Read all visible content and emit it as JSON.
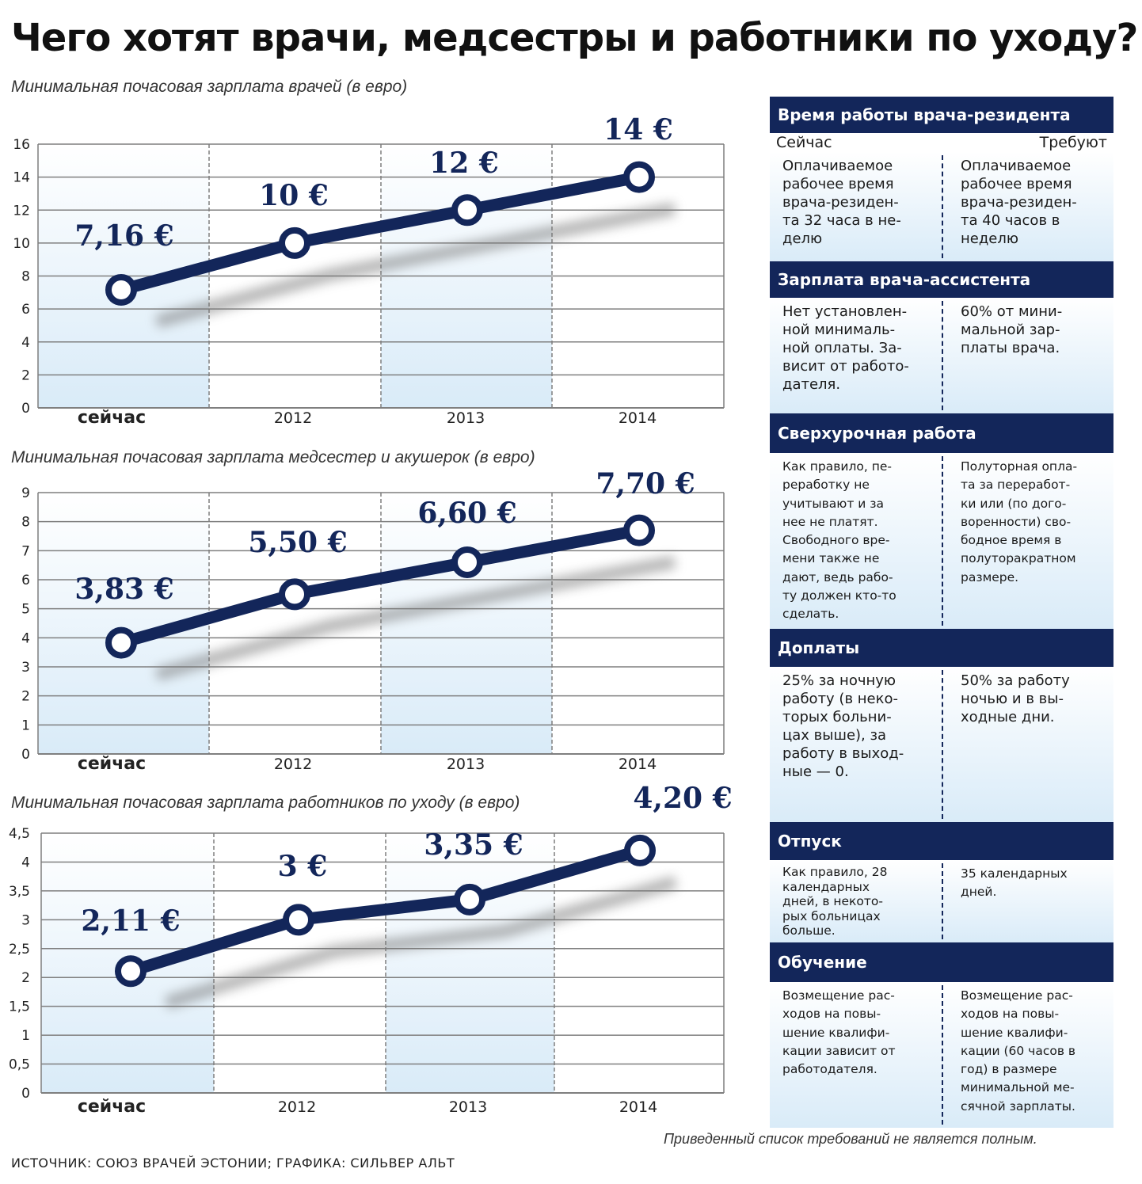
{
  "title": "Чего хотят врачи, медсестры и работники по уходу?",
  "chart_data": [
    {
      "type": "line",
      "title": "Минимальная почасовая зарплата врачей (в евро)",
      "categories": [
        "сейчас",
        "2012",
        "2013",
        "2014"
      ],
      "series": [
        {
          "values": [
            7.16,
            10,
            12,
            14
          ]
        }
      ],
      "data_labels": [
        "7,16 €",
        "10 €",
        "12 €",
        "14 €"
      ],
      "yticks": [
        "0",
        "2",
        "4",
        "6",
        "8",
        "10",
        "12",
        "14",
        "16"
      ],
      "ylim": [
        0,
        16
      ]
    },
    {
      "type": "line",
      "title": "Минимальная почасовая зарплата медсестер и акушерок (в евро)",
      "categories": [
        "сейчас",
        "2012",
        "2013",
        "2014"
      ],
      "series": [
        {
          "values": [
            3.83,
            5.5,
            6.6,
            7.7
          ]
        }
      ],
      "data_labels": [
        "3,83 €",
        "5,50 €",
        "6,60 €",
        "7,70 €"
      ],
      "yticks": [
        "0",
        "1",
        "2",
        "3",
        "4",
        "5",
        "6",
        "7",
        "8",
        "9"
      ],
      "ylim": [
        0,
        9
      ]
    },
    {
      "type": "line",
      "title": "Минимальная почасовая зарплата работников по уходу (в евро)",
      "categories": [
        "сейчас",
        "2012",
        "2013",
        "2014"
      ],
      "series": [
        {
          "values": [
            2.11,
            3,
            3.35,
            4.2
          ]
        }
      ],
      "data_labels": [
        "2,11 €",
        "3 €",
        "3,35 €",
        "4,20 €"
      ],
      "yticks": [
        "0",
        "0,5",
        "1",
        "1,5",
        "2",
        "2,5",
        "3",
        "3,5",
        "4",
        "4,5"
      ],
      "ylim": [
        0,
        4.5
      ]
    }
  ],
  "colors": {
    "accent": "#13265a",
    "panel_gradient": "#d9ebf8",
    "grid": "#7f7f7f"
  },
  "panel": {
    "header_now": "Сейчас",
    "header_demand": "Требуют",
    "sections": [
      {
        "title": "Время работы врача-резидента",
        "now": "Оплачиваемое\nрабочее время\nврача-резиден-\nта 32 часа в не-\nделю",
        "demand": "Оплачиваемое\nрабочее время\nврача-резиден-\nта 40 часов в\nнеделю"
      },
      {
        "title": "Зарплата врача-ассистента",
        "now": "Нет установлен-\nной минималь-\nной оплаты. За-\nвисит от работо-\nдателя.",
        "demand": "60% от мини-\nмальной зар-\nплаты врача."
      },
      {
        "title": "Сверхурочная работа",
        "now": "Как правило, пе-\nреработку не\nучитывают и за\nнее не платят.\nСвободного вре-\nмени также не\nдают, ведь рабо-\nту должен кто-то\nсделать.",
        "demand": "Полуторная опла-\nта за переработ-\nки или (по дого-\nворенности) сво-\nбодное время в\nполуторакратном\nразмере."
      },
      {
        "title": "Доплаты",
        "now": "25% за ночную\nработу (в неко-\nторых больни-\nцах выше), за\nработу в выход-\nные — 0.",
        "demand": "50% за работу\nночью и в вы-\nходные дни."
      },
      {
        "title": "Отпуск",
        "now": "Как правило, 28\nкалендарных\nдней, в некото-\nрых больницах\nбольше.",
        "demand": "35 календарных\nдней."
      },
      {
        "title": "Обучение",
        "now": "Возмещение рас-\nходов на повы-\nшение квалифи-\nкации зависит от\nработодателя.",
        "demand": "Возмещение рас-\nходов на повы-\nшение квалифи-\nкации (60 часов в\nгод) в размере\nминимальной ме-\nсячной зарплаты."
      }
    ]
  },
  "footnote": "Приведенный список требований не является полным.",
  "source": "ИСТОЧНИК: СОЮЗ ВРАЧЕЙ ЭСТОНИИ; ГРАФИКА: СИЛЬВЕР АЛЬТ"
}
